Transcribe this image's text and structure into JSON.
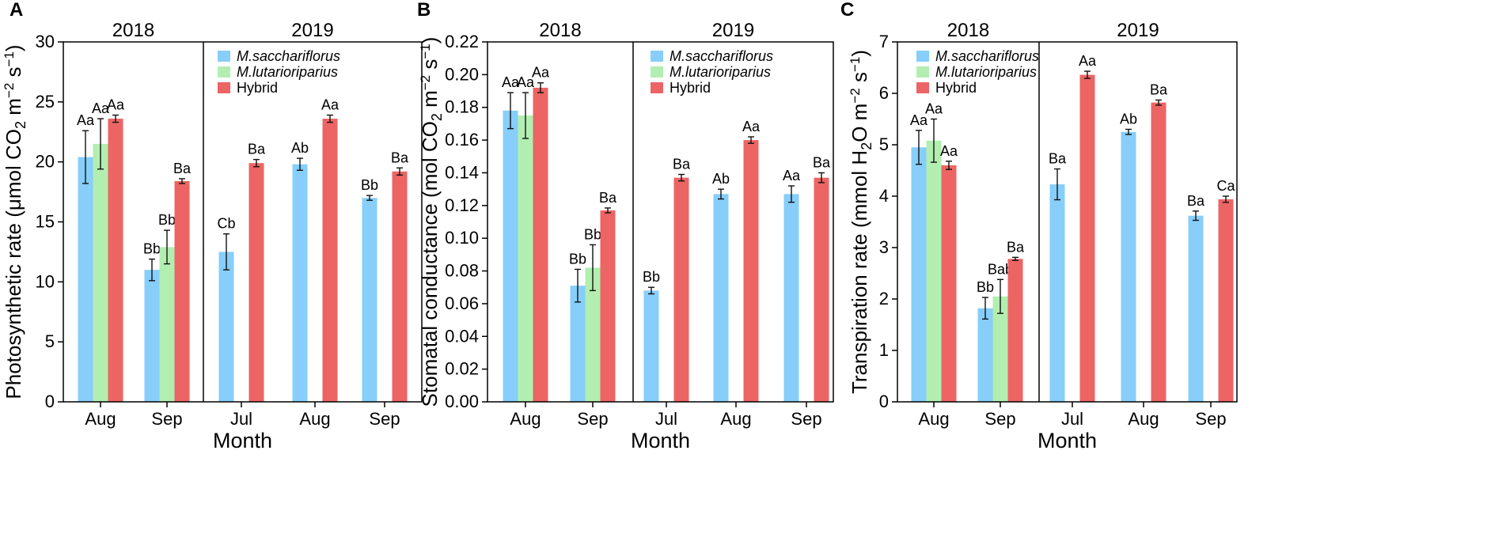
{
  "colors": {
    "M.sacchariflorus": "#87CEFA",
    "M.lutarioriparius": "#B2EEB0",
    "Hybrid": "#EC6464"
  },
  "chart_data": [
    {
      "panel": "A",
      "type": "bar",
      "ylabel": {
        "pre": "Photosynthetic rate (μmol CO",
        "sub": "2",
        "mid1": " m",
        "sup1": "−2",
        "mid2": " s",
        "sup2": "−1",
        "post": ")"
      },
      "xlabel": "Month",
      "ylim": [
        0,
        30
      ],
      "yticks": [
        0,
        5,
        10,
        15,
        20,
        25,
        30
      ],
      "legend_position": "top-right",
      "years": [
        {
          "year": "2018",
          "months": [
            {
              "month": "Aug",
              "bars": [
                {
                  "series": "M.sacchariflorus",
                  "value": 20.4,
                  "err": 2.2,
                  "label": "Aa"
                },
                {
                  "series": "M.lutarioriparius",
                  "value": 21.5,
                  "err": 2.1,
                  "label": "Aa"
                },
                {
                  "series": "Hybrid",
                  "value": 23.6,
                  "err": 0.3,
                  "label": "Aa"
                }
              ]
            },
            {
              "month": "Sep",
              "bars": [
                {
                  "series": "M.sacchariflorus",
                  "value": 11.0,
                  "err": 0.9,
                  "label": "Bb"
                },
                {
                  "series": "M.lutarioriparius",
                  "value": 12.9,
                  "err": 1.4,
                  "label": "Bb"
                },
                {
                  "series": "Hybrid",
                  "value": 18.4,
                  "err": 0.2,
                  "label": "Ba"
                }
              ]
            }
          ]
        },
        {
          "year": "2019",
          "months": [
            {
              "month": "Jul",
              "bars": [
                {
                  "series": "M.sacchariflorus",
                  "value": 12.5,
                  "err": 1.5,
                  "label": "Cb"
                },
                {
                  "series": "Hybrid",
                  "value": 19.9,
                  "err": 0.3,
                  "label": "Ba"
                }
              ]
            },
            {
              "month": "Aug",
              "bars": [
                {
                  "series": "M.sacchariflorus",
                  "value": 19.8,
                  "err": 0.5,
                  "label": "Ab"
                },
                {
                  "series": "Hybrid",
                  "value": 23.6,
                  "err": 0.3,
                  "label": "Aa"
                }
              ]
            },
            {
              "month": "Sep",
              "bars": [
                {
                  "series": "M.sacchariflorus",
                  "value": 17.0,
                  "err": 0.2,
                  "label": "Bb"
                },
                {
                  "series": "Hybrid",
                  "value": 19.2,
                  "err": 0.3,
                  "label": "Ba"
                }
              ]
            }
          ]
        }
      ]
    },
    {
      "panel": "B",
      "type": "bar",
      "ylabel": {
        "pre": "Stomatal conductance (mol CO",
        "sub": "2",
        "mid1": " m",
        "sup1": "−2",
        "mid2": " s",
        "sup2": "−1",
        "post": ")"
      },
      "xlabel": "Month",
      "ylim": [
        0,
        0.22
      ],
      "yticks": [
        0,
        0.02,
        0.04,
        0.06,
        0.08,
        0.1,
        0.12,
        0.14,
        0.16,
        0.18,
        0.2,
        0.22
      ],
      "ytick_labels": [
        "0.00",
        "0.02",
        "0.04",
        "0.06",
        "0.08",
        "0.10",
        "0.12",
        "0.14",
        "0.16",
        "0.18",
        "0.20",
        "0.22"
      ],
      "legend_position": "top-right",
      "years": [
        {
          "year": "2018",
          "months": [
            {
              "month": "Aug",
              "bars": [
                {
                  "series": "M.sacchariflorus",
                  "value": 0.178,
                  "err": 0.011,
                  "label": "Aa"
                },
                {
                  "series": "M.lutarioriparius",
                  "value": 0.175,
                  "err": 0.014,
                  "label": "Aa"
                },
                {
                  "series": "Hybrid",
                  "value": 0.192,
                  "err": 0.003,
                  "label": "Aa"
                }
              ]
            },
            {
              "month": "Sep",
              "bars": [
                {
                  "series": "M.sacchariflorus",
                  "value": 0.071,
                  "err": 0.01,
                  "label": "Bb"
                },
                {
                  "series": "M.lutarioriparius",
                  "value": 0.082,
                  "err": 0.014,
                  "label": "Bb"
                },
                {
                  "series": "Hybrid",
                  "value": 0.117,
                  "err": 0.0015,
                  "label": "Ba"
                }
              ]
            }
          ]
        },
        {
          "year": "2019",
          "months": [
            {
              "month": "Jul",
              "bars": [
                {
                  "series": "M.sacchariflorus",
                  "value": 0.068,
                  "err": 0.002,
                  "label": "Bb"
                },
                {
                  "series": "Hybrid",
                  "value": 0.137,
                  "err": 0.002,
                  "label": "Ba"
                }
              ]
            },
            {
              "month": "Aug",
              "bars": [
                {
                  "series": "M.sacchariflorus",
                  "value": 0.127,
                  "err": 0.003,
                  "label": "Ab"
                },
                {
                  "series": "Hybrid",
                  "value": 0.16,
                  "err": 0.002,
                  "label": "Aa"
                }
              ]
            },
            {
              "month": "Sep",
              "bars": [
                {
                  "series": "M.sacchariflorus",
                  "value": 0.127,
                  "err": 0.005,
                  "label": "Aa"
                },
                {
                  "series": "Hybrid",
                  "value": 0.137,
                  "err": 0.003,
                  "label": "Ba"
                }
              ]
            }
          ]
        }
      ]
    },
    {
      "panel": "C",
      "type": "bar",
      "ylabel": {
        "pre": "Transpiration rate (mmol H",
        "sub": "2",
        "mid1": "O m",
        "sup1": "−2",
        "mid2": " s",
        "sup2": "−1",
        "post": ")"
      },
      "xlabel": "Month",
      "ylim": [
        0,
        7
      ],
      "yticks": [
        0,
        1,
        2,
        3,
        4,
        5,
        6,
        7
      ],
      "legend_position": "top-left",
      "years": [
        {
          "year": "2018",
          "months": [
            {
              "month": "Aug",
              "bars": [
                {
                  "series": "M.sacchariflorus",
                  "value": 4.95,
                  "err": 0.33,
                  "label": "Aa"
                },
                {
                  "series": "M.lutarioriparius",
                  "value": 5.08,
                  "err": 0.42,
                  "label": "Aa"
                },
                {
                  "series": "Hybrid",
                  "value": 4.6,
                  "err": 0.08,
                  "label": "Aa"
                }
              ]
            },
            {
              "month": "Sep",
              "bars": [
                {
                  "series": "M.sacchariflorus",
                  "value": 1.82,
                  "err": 0.21,
                  "label": "Bb"
                },
                {
                  "series": "M.lutarioriparius",
                  "value": 2.05,
                  "err": 0.33,
                  "label": "Bab"
                },
                {
                  "series": "Hybrid",
                  "value": 2.78,
                  "err": 0.03,
                  "label": "Ba"
                }
              ]
            }
          ]
        },
        {
          "year": "2019",
          "months": [
            {
              "month": "Jul",
              "bars": [
                {
                  "series": "M.sacchariflorus",
                  "value": 4.23,
                  "err": 0.3,
                  "label": "Ba"
                },
                {
                  "series": "Hybrid",
                  "value": 6.36,
                  "err": 0.07,
                  "label": "Aa"
                }
              ]
            },
            {
              "month": "Aug",
              "bars": [
                {
                  "series": "M.sacchariflorus",
                  "value": 5.25,
                  "err": 0.05,
                  "label": "Ab"
                },
                {
                  "series": "Hybrid",
                  "value": 5.82,
                  "err": 0.05,
                  "label": "Ba"
                }
              ]
            },
            {
              "month": "Sep",
              "bars": [
                {
                  "series": "M.sacchariflorus",
                  "value": 3.62,
                  "err": 0.09,
                  "label": "Ba"
                },
                {
                  "series": "Hybrid",
                  "value": 3.94,
                  "err": 0.06,
                  "label": "Ca"
                }
              ]
            }
          ]
        }
      ]
    }
  ],
  "legend": [
    "M.sacchariflorus",
    "M.lutarioriparius",
    "Hybrid"
  ]
}
